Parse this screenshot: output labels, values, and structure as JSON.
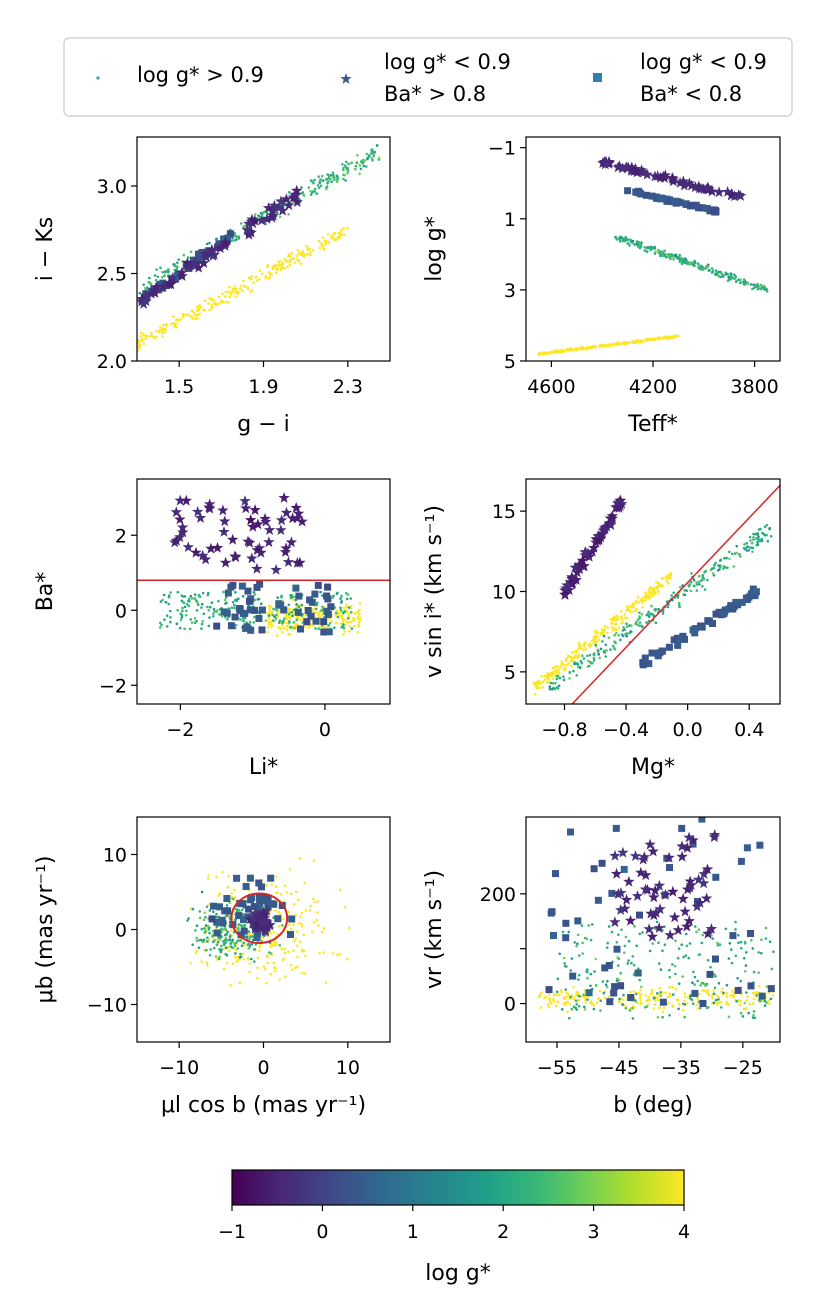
{
  "colors": {
    "viridis": [
      "#440154",
      "#482878",
      "#3e4989",
      "#31688e",
      "#26828e",
      "#1f9e89",
      "#35b779",
      "#6ece58",
      "#b5de2b",
      "#fde725"
    ],
    "limit_line": "#d62728",
    "legend_star": "#3b5a8a",
    "legend_square": "#2f7fb5",
    "legend_dot": "#35a0a0"
  },
  "legend": {
    "items": [
      {
        "marker": "dot",
        "line1": "log g* > 0.9",
        "line2": ""
      },
      {
        "marker": "star",
        "line1": "log g* < 0.9",
        "line2": "Ba* > 0.8"
      },
      {
        "marker": "square",
        "line1": "log g* < 0.9",
        "line2": "Ba* < 0.8"
      }
    ]
  },
  "colorbar": {
    "label": "log g*",
    "min": -1,
    "max": 4,
    "ticks": [
      -1,
      0,
      1,
      2,
      3,
      4
    ],
    "tick_labels": [
      "−1",
      "0",
      "1",
      "2",
      "3",
      "4"
    ]
  },
  "chart_data": [
    {
      "id": "p1",
      "type": "scatter",
      "xlabel": "g − i",
      "ylabel": "i − Ks",
      "xlim": [
        1.3,
        2.5
      ],
      "ylim": [
        2.0,
        3.28
      ],
      "xticks": [
        1.5,
        1.9,
        2.3
      ],
      "xtick_labels": [
        "1.5",
        "1.9",
        "2.3"
      ],
      "yticks": [
        2.0,
        2.5,
        3.0
      ],
      "ytick_labels": [
        "2.0",
        "2.5",
        "3.0"
      ],
      "groups": {
        "dwarf_sequence": {
          "x": [
            1.3,
            2.3
          ],
          "y": [
            2.1,
            2.75
          ],
          "logg": [
            4.6,
            4.6
          ]
        },
        "giant_sequence": {
          "x": [
            1.3,
            2.45
          ],
          "y": [
            2.4,
            3.2
          ],
          "logg": [
            2.3,
            2.3
          ]
        },
        "ba_stars": {
          "x": [
            1.32,
            2.06
          ],
          "y": [
            2.35,
            2.95
          ],
          "logg": [
            -0.4,
            -0.4
          ]
        },
        "low_ba_giants": {
          "x": [
            1.32,
            1.75
          ],
          "y": [
            2.35,
            2.72
          ],
          "logg": [
            0.3,
            0.3
          ]
        }
      },
      "lines": [],
      "circles": []
    },
    {
      "id": "p2",
      "type": "scatter",
      "xlabel": "Teff*",
      "ylabel": "log g*",
      "xlim": [
        4700,
        3700
      ],
      "ylim": [
        5.0,
        -1.3
      ],
      "y_inverted": true,
      "xticks": [
        4600,
        4200,
        3800
      ],
      "xtick_labels": [
        "4600",
        "4200",
        "3800"
      ],
      "yticks": [
        -1,
        1,
        3,
        5
      ],
      "ytick_labels": [
        "−1",
        "1",
        "3",
        "5"
      ],
      "groups": {
        "dwarf_sequence": {
          "x": [
            4650,
            4100
          ],
          "y": [
            4.8,
            4.3
          ],
          "logg": [
            4.6,
            4.6
          ]
        },
        "giant_sequence": {
          "x": [
            4350,
            3750
          ],
          "y": [
            1.5,
            3.0
          ],
          "logg": [
            2.2,
            2.2
          ]
        },
        "ba_stars": {
          "x": [
            4400,
            3850
          ],
          "y": [
            -0.6,
            0.4
          ],
          "logg": [
            -0.4,
            -0.4
          ]
        },
        "low_ba_giants": {
          "x": [
            4300,
            3950
          ],
          "y": [
            0.2,
            0.8
          ],
          "logg": [
            0.4,
            0.4
          ]
        }
      },
      "lines": [],
      "circles": []
    },
    {
      "id": "p3",
      "type": "scatter",
      "xlabel": "Li*",
      "ylabel": "Ba*",
      "xlim": [
        -2.6,
        0.9
      ],
      "ylim": [
        -2.5,
        3.5
      ],
      "xticks": [
        -2,
        0
      ],
      "xtick_labels": [
        "−2",
        "0"
      ],
      "yticks": [
        -2,
        0,
        2
      ],
      "ytick_labels": [
        "−2",
        "0",
        "2"
      ],
      "groups": {
        "dwarf_sequence": {
          "x": [
            -0.8,
            0.5
          ],
          "y": [
            -0.9,
            0.5
          ],
          "logg": [
            4.5,
            4.5
          ]
        },
        "giant_sequence": {
          "x": [
            -2.3,
            0.4
          ],
          "y": [
            -0.5,
            0.5
          ],
          "logg": [
            2.2,
            2.2
          ]
        },
        "ba_stars": {
          "x": [
            -2.1,
            -0.3
          ],
          "y": [
            1.0,
            3.0
          ],
          "logg": [
            -0.5,
            -0.5
          ]
        },
        "low_ba_giants": {
          "x": [
            -1.5,
            0.1
          ],
          "y": [
            -0.6,
            0.7
          ],
          "logg": [
            0.4,
            0.4
          ]
        }
      },
      "lines": [
        {
          "x": [
            -2.6,
            0.9
          ],
          "y": [
            0.8,
            0.8
          ]
        }
      ],
      "circles": []
    },
    {
      "id": "p4",
      "type": "scatter",
      "xlabel": "Mg*",
      "ylabel": "v sin i* (km s⁻¹)",
      "xlim": [
        -1.05,
        0.6
      ],
      "ylim": [
        3.0,
        17.0
      ],
      "xticks": [
        -0.8,
        -0.4,
        0.0,
        0.4
      ],
      "xtick_labels": [
        "−0.8",
        "−0.4",
        "0.0",
        "0.4"
      ],
      "yticks": [
        5,
        10,
        15
      ],
      "ytick_labels": [
        "5",
        "10",
        "15"
      ],
      "groups": {
        "dwarf_sequence": {
          "x": [
            -1.0,
            -0.1
          ],
          "y": [
            4.0,
            11.0
          ],
          "logg": [
            4.5,
            4.5
          ]
        },
        "giant_sequence": {
          "x": [
            -0.9,
            0.55
          ],
          "y": [
            4.0,
            14.0
          ],
          "logg": [
            2.2,
            2.2
          ]
        },
        "ba_stars": {
          "x": [
            -0.8,
            -0.4
          ],
          "y": [
            10.0,
            16.0
          ],
          "logg": [
            -0.5,
            -0.5
          ]
        },
        "low_ba_giants": {
          "x": [
            -0.3,
            0.45
          ],
          "y": [
            5.5,
            10.0
          ],
          "logg": [
            0.4,
            0.4
          ]
        }
      },
      "lines": [
        {
          "x": [
            -0.75,
            0.6
          ],
          "y": [
            3.0,
            16.6
          ]
        }
      ],
      "circles": []
    },
    {
      "id": "p5",
      "type": "scatter",
      "xlabel": "μl cos b (mas yr⁻¹)",
      "ylabel": "μb (mas yr⁻¹)",
      "xlim": [
        -15,
        15
      ],
      "ylim": [
        -15,
        15
      ],
      "xticks": [
        -10,
        0,
        10
      ],
      "xtick_labels": [
        "−10",
        "0",
        "10"
      ],
      "yticks": [
        -10,
        0,
        10
      ],
      "ytick_labels": [
        "−10",
        "0",
        "10"
      ],
      "groups": {
        "dwarf_sequence": {
          "x": [
            -14,
            14
          ],
          "y": [
            -14,
            14
          ],
          "logg": [
            4.3,
            4.3
          ]
        },
        "giant_sequence": {
          "x": [
            -12,
            5
          ],
          "y": [
            -8,
            8
          ],
          "logg": [
            2.2,
            2.2
          ]
        },
        "ba_stars": {
          "x": [
            -2,
            1.5
          ],
          "y": [
            -1.5,
            3.5
          ],
          "logg": [
            -0.4,
            -0.4
          ]
        },
        "low_ba_giants": {
          "x": [
            -11,
            8
          ],
          "y": [
            -6,
            11.5
          ],
          "logg": [
            0.4,
            0.4
          ]
        }
      },
      "lines": [],
      "circles": [
        {
          "cx": -0.5,
          "cy": 1.5,
          "r": 3.3
        }
      ]
    },
    {
      "id": "p6",
      "type": "scatter",
      "xlabel": "b (deg)",
      "ylabel": "vr (km s⁻¹)",
      "xlim": [
        -60,
        -19
      ],
      "ylim": [
        -70,
        340
      ],
      "xticks": [
        -55,
        -45,
        -35,
        -25
      ],
      "xtick_labels": [
        "−55",
        "−45",
        "−35",
        "−25"
      ],
      "yticks": [
        0,
        100,
        200
      ],
      "ytick_labels": [
        "0",
        "",
        "200"
      ],
      "groups": {
        "dwarf_sequence": {
          "x": [
            -58,
            -20
          ],
          "y": [
            -25,
            45
          ],
          "logg": [
            4.5,
            4.5
          ]
        },
        "giant_sequence": {
          "x": [
            -55,
            -20
          ],
          "y": [
            -30,
            150
          ],
          "logg": [
            2.2,
            2.2
          ]
        },
        "ba_stars": {
          "x": [
            -46,
            -29
          ],
          "y": [
            110,
            310
          ],
          "logg": [
            -0.4,
            -0.4
          ]
        },
        "low_ba_giants": {
          "x": [
            -57,
            -20
          ],
          "y": [
            0,
            340
          ],
          "logg": [
            0.4,
            0.4
          ]
        }
      },
      "lines": [],
      "circles": []
    }
  ]
}
